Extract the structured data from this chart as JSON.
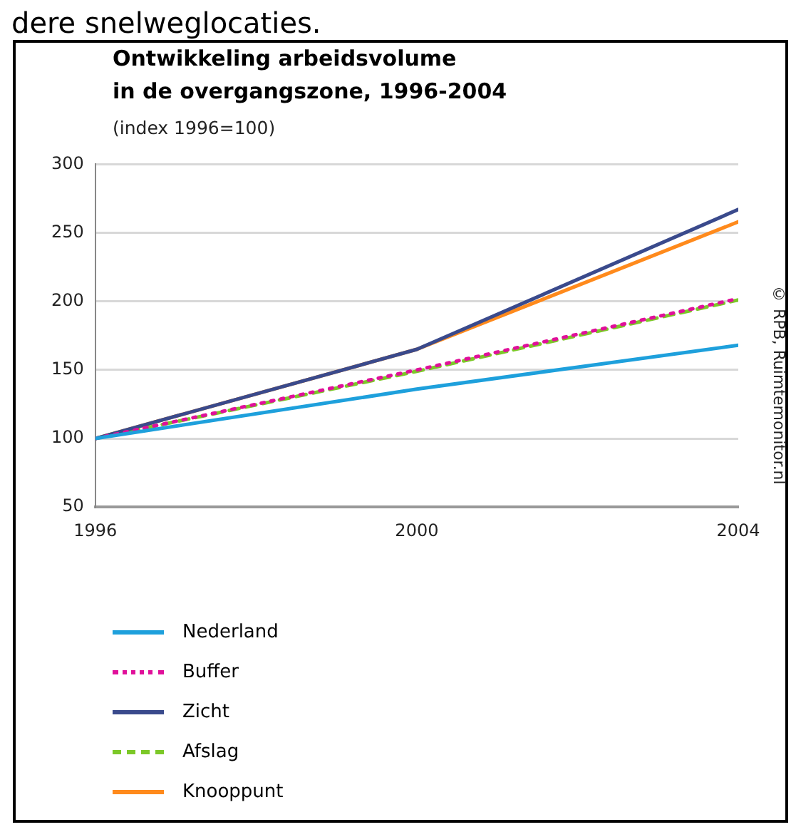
{
  "chart_data": {
    "type": "line",
    "title": "Ontwikkeling arbeidsvolume\nin de overgangszone, 1996-2004",
    "subtitle": "(index 1996=100)",
    "annotations": [
      "dere snelweglocaties.",
      "© RPB, Ruimtemonitor.nl"
    ],
    "x": [
      1996,
      2000,
      2004
    ],
    "xlim": [
      1996,
      2004
    ],
    "xticks": [
      1996,
      2000,
      2004
    ],
    "ylim": [
      50,
      300
    ],
    "yticks": [
      50,
      100,
      150,
      200,
      250,
      300
    ],
    "grid": "y",
    "legend": "bottom",
    "marker": "none",
    "series": [
      {
        "name": "Nederland",
        "color": "#1ea0dc",
        "line_style": "solid",
        "values": [
          100,
          136,
          168
        ]
      },
      {
        "name": "Buffer",
        "color": "#e0109a",
        "line_style": "dotted",
        "values": [
          100,
          150,
          202
        ]
      },
      {
        "name": "Zicht",
        "color": "#3a4a8c",
        "line_style": "solid",
        "values": [
          100,
          165,
          267
        ]
      },
      {
        "name": "Afslag",
        "color": "#7cc828",
        "line_style": "dashed",
        "values": [
          100,
          149,
          201
        ]
      },
      {
        "name": "Knooppunt",
        "color": "#ff8a1c",
        "line_style": "solid",
        "values": [
          100,
          165,
          258
        ]
      }
    ]
  }
}
